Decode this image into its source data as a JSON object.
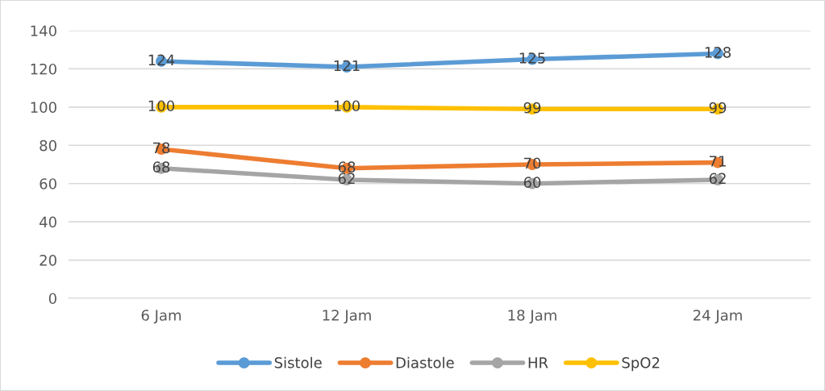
{
  "chart_data": {
    "type": "line",
    "categories": [
      "6 Jam",
      "12 Jam",
      "18 Jam",
      "24 Jam"
    ],
    "series": [
      {
        "name": "Sistole",
        "color": "#5b9bd5",
        "values": [
          124,
          121,
          125,
          128
        ]
      },
      {
        "name": "Diastole",
        "color": "#ed7d31",
        "values": [
          78,
          68,
          70,
          71
        ]
      },
      {
        "name": "HR",
        "color": "#a5a5a5",
        "values": [
          68,
          62,
          60,
          62
        ]
      },
      {
        "name": "SpO2",
        "color": "#ffc000",
        "values": [
          100,
          100,
          99,
          99
        ]
      }
    ],
    "ylim": [
      0,
      140
    ],
    "yticks": [
      0,
      20,
      40,
      60,
      80,
      100,
      120,
      140
    ],
    "grid": "y",
    "legend": "bottom",
    "marker": "circle",
    "line_style": "solid",
    "data_labels": true
  }
}
